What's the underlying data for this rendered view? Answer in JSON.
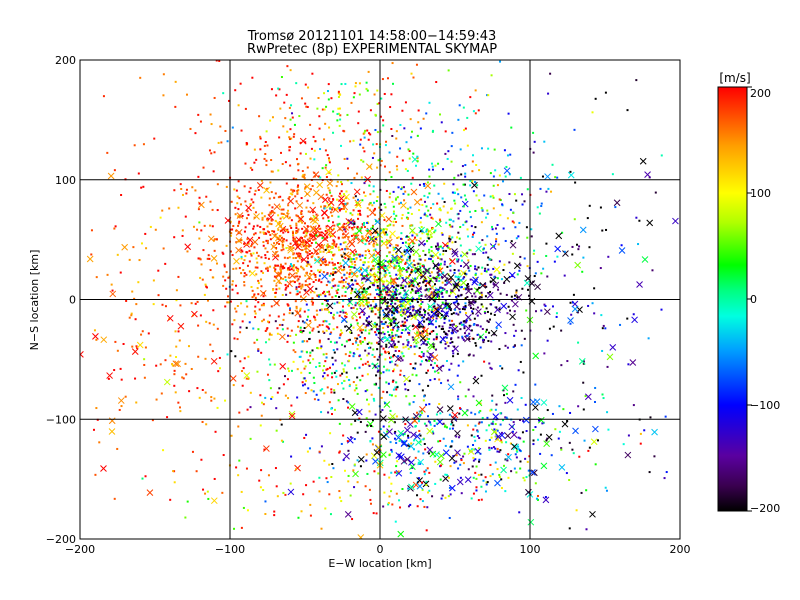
{
  "chart_data": {
    "type": "scatter",
    "title": "Tromsø 20121101 14:58:00−14:59:43",
    "subtitle": "RwPretec (8p) EXPERIMENTAL SKYMAP",
    "xlabel": "E−W location [km]",
    "ylabel": "N−S location [km]",
    "xlim": [
      -200,
      200
    ],
    "ylim": [
      -200,
      200
    ],
    "xticks": [
      -200,
      -100,
      0,
      100,
      200
    ],
    "yticks": [
      -200,
      -100,
      0,
      100,
      200
    ],
    "xtick_labels": [
      "−200",
      "−100",
      "0",
      "100",
      "200"
    ],
    "ytick_labels": [
      "−200",
      "−100",
      "0",
      "100",
      "200"
    ],
    "grid": true,
    "markers": [
      "dot",
      "x"
    ],
    "colorbar": {
      "label": "[m/s]",
      "range": [
        -200,
        200
      ],
      "ticks": [
        200,
        100,
        0,
        -100,
        -200
      ],
      "tick_labels": [
        "200",
        "100",
        "0",
        "−100",
        "−200"
      ],
      "colormap": [
        "#000000",
        "#5a0070",
        "#0000ff",
        "#00b4ff",
        "#00ffd0",
        "#00ff00",
        "#aaff00",
        "#ffff00",
        "#ffaa00",
        "#ff0000"
      ]
    },
    "series": [
      {
        "cx": -55,
        "cy": 45,
        "sx": 30,
        "sy": 35,
        "vmean": 175,
        "vspread": 30,
        "n": 900,
        "marker": "dot"
      },
      {
        "cx": -40,
        "cy": 60,
        "sx": 30,
        "sy": 28,
        "vmean": 170,
        "vspread": 35,
        "n": 120,
        "marker": "x"
      },
      {
        "cx": 10,
        "cy": 20,
        "sx": 25,
        "sy": 35,
        "vmean": 80,
        "vspread": 70,
        "n": 700,
        "marker": "dot"
      },
      {
        "cx": 15,
        "cy": 15,
        "sx": 25,
        "sy": 30,
        "vmean": 70,
        "vspread": 80,
        "n": 110,
        "marker": "x"
      },
      {
        "cx": 35,
        "cy": -5,
        "sx": 35,
        "sy": 25,
        "vmean": -170,
        "vspread": 45,
        "n": 650,
        "marker": "dot"
      },
      {
        "cx": 45,
        "cy": 0,
        "sx": 40,
        "sy": 30,
        "vmean": -170,
        "vspread": 40,
        "n": 90,
        "marker": "x"
      },
      {
        "cx": 50,
        "cy": 70,
        "sx": 40,
        "sy": 40,
        "vmean": -10,
        "vspread": 100,
        "n": 350,
        "marker": "dot"
      },
      {
        "cx": 55,
        "cy": -120,
        "sx": 45,
        "sy": 25,
        "vmean": -60,
        "vspread": 110,
        "n": 380,
        "marker": "dot"
      },
      {
        "cx": 40,
        "cy": -120,
        "sx": 45,
        "sy": 25,
        "vmean": -40,
        "vspread": 110,
        "n": 110,
        "marker": "x"
      },
      {
        "cx": -20,
        "cy": -50,
        "sx": 35,
        "sy": 35,
        "vmean": 40,
        "vspread": 150,
        "n": 420,
        "marker": "dot"
      },
      {
        "cx": -130,
        "cy": -40,
        "sx": 45,
        "sy": 60,
        "vmean": 170,
        "vspread": 35,
        "n": 200,
        "marker": "dot"
      },
      {
        "cx": -130,
        "cy": -40,
        "sx": 45,
        "sy": 60,
        "vmean": 170,
        "vspread": 35,
        "n": 40,
        "marker": "x"
      },
      {
        "cx": 130,
        "cy": 0,
        "sx": 50,
        "sy": 90,
        "vmean": -120,
        "vspread": 90,
        "n": 140,
        "marker": "dot"
      },
      {
        "cx": 130,
        "cy": 0,
        "sx": 50,
        "sy": 90,
        "vmean": -100,
        "vspread": 100,
        "n": 45,
        "marker": "x"
      },
      {
        "cx": -20,
        "cy": 150,
        "sx": 40,
        "sy": 25,
        "vmean": 130,
        "vspread": 110,
        "n": 200,
        "marker": "dot"
      },
      {
        "cx": -110,
        "cy": 120,
        "sx": 45,
        "sy": 50,
        "vmean": 185,
        "vspread": 20,
        "n": 80,
        "marker": "dot"
      },
      {
        "cx": -20,
        "cy": -160,
        "sx": 60,
        "sy": 20,
        "vmean": 140,
        "vspread": 80,
        "n": 120,
        "marker": "dot"
      }
    ]
  }
}
